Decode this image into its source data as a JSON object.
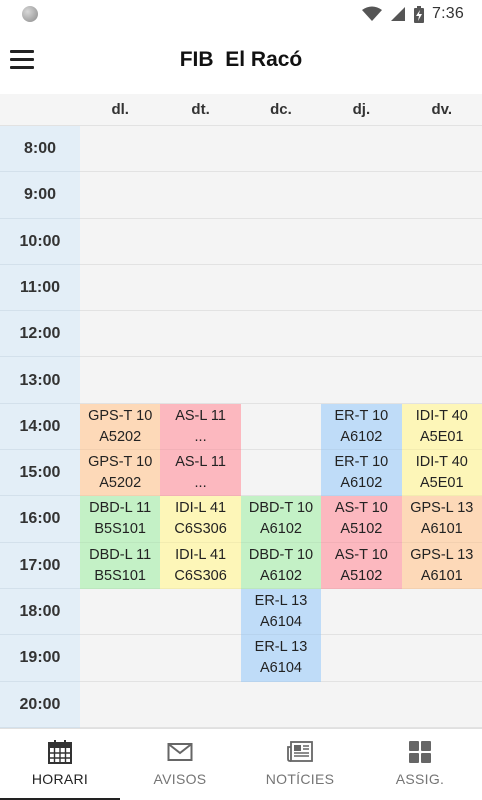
{
  "status_bar": {
    "time": "7:36"
  },
  "app_bar": {
    "title": "FIB  El Racó"
  },
  "timetable": {
    "days": [
      "dl.",
      "dt.",
      "dc.",
      "dj.",
      "dv."
    ],
    "hours": [
      "8:00",
      "9:00",
      "10:00",
      "11:00",
      "12:00",
      "13:00",
      "14:00",
      "15:00",
      "16:00",
      "17:00",
      "18:00",
      "19:00",
      "20:00"
    ],
    "entries": [
      {
        "day": 0,
        "hour": 6,
        "subject": "GPS-T 10",
        "room": "A5202",
        "color": "#fdd9b8"
      },
      {
        "day": 0,
        "hour": 7,
        "subject": "GPS-T 10",
        "room": "A5202",
        "color": "#fdd9b8"
      },
      {
        "day": 1,
        "hour": 6,
        "subject": "AS-L 11",
        "room": "...",
        "color": "#fcb8bf"
      },
      {
        "day": 1,
        "hour": 7,
        "subject": "AS-L 11",
        "room": "...",
        "color": "#fcb8bf"
      },
      {
        "day": 3,
        "hour": 6,
        "subject": "ER-T 10",
        "room": "A6102",
        "color": "#bfdcf8"
      },
      {
        "day": 3,
        "hour": 7,
        "subject": "ER-T 10",
        "room": "A6102",
        "color": "#bfdcf8"
      },
      {
        "day": 4,
        "hour": 6,
        "subject": "IDI-T 40",
        "room": "A5E01",
        "color": "#fdf6b8"
      },
      {
        "day": 4,
        "hour": 7,
        "subject": "IDI-T 40",
        "room": "A5E01",
        "color": "#fdf6b8"
      },
      {
        "day": 0,
        "hour": 8,
        "subject": "DBD-L 11",
        "room": "B5S101",
        "color": "#c4f1c6"
      },
      {
        "day": 0,
        "hour": 9,
        "subject": "DBD-L 11",
        "room": "B5S101",
        "color": "#c4f1c6"
      },
      {
        "day": 1,
        "hour": 8,
        "subject": "IDI-L 41",
        "room": "C6S306",
        "color": "#fdf6b8"
      },
      {
        "day": 1,
        "hour": 9,
        "subject": "IDI-L 41",
        "room": "C6S306",
        "color": "#fdf6b8"
      },
      {
        "day": 2,
        "hour": 8,
        "subject": "DBD-T 10",
        "room": "A6102",
        "color": "#c4f1c6"
      },
      {
        "day": 2,
        "hour": 9,
        "subject": "DBD-T 10",
        "room": "A6102",
        "color": "#c4f1c6"
      },
      {
        "day": 3,
        "hour": 8,
        "subject": "AS-T 10",
        "room": "A5102",
        "color": "#fcb8bf"
      },
      {
        "day": 3,
        "hour": 9,
        "subject": "AS-T 10",
        "room": "A5102",
        "color": "#fcb8bf"
      },
      {
        "day": 4,
        "hour": 8,
        "subject": "GPS-L 13",
        "room": "A6101",
        "color": "#fdd9b8"
      },
      {
        "day": 4,
        "hour": 9,
        "subject": "GPS-L 13",
        "room": "A6101",
        "color": "#fdd9b8"
      },
      {
        "day": 2,
        "hour": 10,
        "subject": "ER-L 13",
        "room": "A6104",
        "color": "#bfdcf8"
      },
      {
        "day": 2,
        "hour": 11,
        "subject": "ER-L 13",
        "room": "A6104",
        "color": "#bfdcf8"
      }
    ]
  },
  "bottom_nav": {
    "items": [
      {
        "label": "HORARI",
        "icon": "calendar-icon",
        "active": true
      },
      {
        "label": "AVISOS",
        "icon": "envelope-icon",
        "active": false
      },
      {
        "label": "NOTÍCIES",
        "icon": "newspaper-icon",
        "active": false
      },
      {
        "label": "ASSIG.",
        "icon": "grid-icon",
        "active": false
      }
    ]
  }
}
